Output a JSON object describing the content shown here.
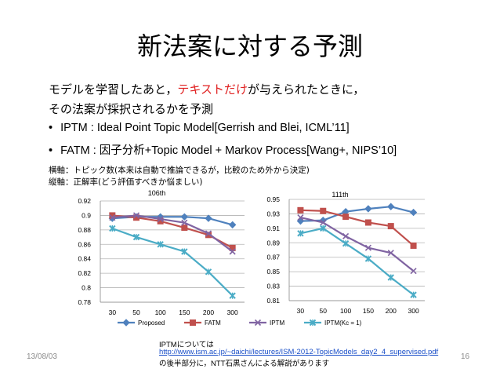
{
  "slide": {
    "title": "新法案に対する予測",
    "line1_a": "モデルを学習したあと，",
    "line1_red": "テキストだけ",
    "line1_b": "が与えられたときに，",
    "line2": "その法案が採択されるかを予測",
    "bullets": [
      "IPTM : Ideal Point Topic Model[Gerrish and Blei, ICML’11]",
      "FATM : 因子分析+Topic Model + Markov Process[Wang+, NIPS’10]"
    ],
    "bullet_char": "•",
    "note1": "横軸：トピック数(本来は自動で推論できるが，比較のため外から決定)",
    "note2": "縦軸：正解率(どう評価すべきか悩ましい)",
    "ref1": "IPTMについては",
    "ref2": "http://www.ism.ac.jp/~daichi/lectures/ISM-2012-TopicModels_day2_4_supervised.pdf",
    "ref3": "の後半部分に，NTT石黒さんによる解説があります",
    "date": "13/08/03",
    "page": "16"
  },
  "chart_data": [
    {
      "type": "line",
      "title": "106th",
      "categories": [
        "30",
        "50",
        "100",
        "150",
        "200",
        "300"
      ],
      "ylim": [
        0.78,
        0.92
      ],
      "yticks": [
        "0.78",
        "0.8",
        "0.82",
        "0.84",
        "0.86",
        "0.88",
        "0.9",
        "0.92"
      ],
      "series": [
        {
          "name": "Proposed",
          "values": [
            0.896,
            0.898,
            0.898,
            0.898,
            0.896,
            0.887
          ]
        },
        {
          "name": "FATM",
          "values": [
            0.9,
            0.897,
            0.892,
            0.883,
            0.873,
            0.855
          ]
        },
        {
          "name": "IPTM",
          "values": [
            0.897,
            0.9,
            0.895,
            0.89,
            0.875,
            0.85
          ]
        },
        {
          "name": "IPTM(Kc = 1)",
          "values": [
            0.882,
            0.87,
            0.86,
            0.85,
            0.822,
            0.789
          ]
        }
      ]
    },
    {
      "type": "line",
      "title": "111th",
      "categories": [
        "30",
        "50",
        "100",
        "150",
        "200",
        "300"
      ],
      "ylim": [
        0.81,
        0.95
      ],
      "yticks": [
        "0.81",
        "0.83",
        "0.85",
        "0.87",
        "0.89",
        "0.91",
        "0.93",
        "0.95"
      ],
      "series": [
        {
          "name": "Proposed",
          "values": [
            0.92,
            0.921,
            0.933,
            0.937,
            0.94,
            0.932
          ]
        },
        {
          "name": "FATM",
          "values": [
            0.935,
            0.934,
            0.926,
            0.918,
            0.913,
            0.886
          ]
        },
        {
          "name": "IPTM",
          "values": [
            0.925,
            0.918,
            0.899,
            0.883,
            0.876,
            0.851
          ]
        },
        {
          "name": "IPTM(Kc = 1)",
          "values": [
            0.903,
            0.91,
            0.889,
            0.868,
            0.842,
            0.818
          ]
        }
      ]
    }
  ],
  "legend": [
    "Proposed",
    "FATM",
    "IPTM",
    "IPTM(Kc = 1)"
  ],
  "colors": {
    "Proposed": "#4f81bd",
    "FATM": "#c0504d",
    "IPTM": "#8064a2",
    "IPTM(Kc = 1)": "#4bacc6",
    "grid": "#b3b3b3",
    "accent": "#e02020"
  }
}
